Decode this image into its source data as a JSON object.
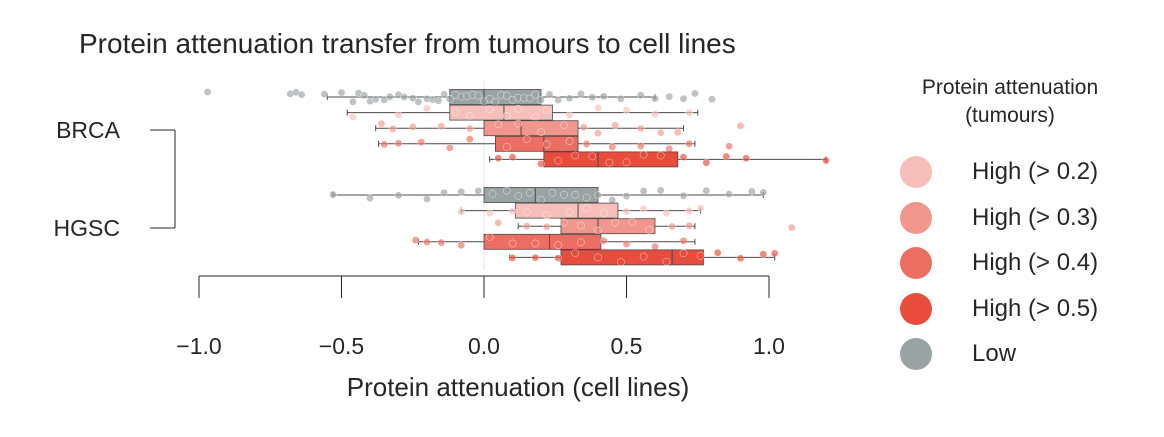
{
  "chart_data": {
    "type": "boxplot-strip",
    "title": "Protein attenuation transfer from tumours to cell lines",
    "xlabel": "Protein attenuation (cell lines)",
    "xlim": [
      -1.0,
      1.2
    ],
    "xticks": [
      -1.0,
      -0.5,
      0.0,
      0.5,
      1.0
    ],
    "xtick_labels": [
      "−1.0",
      "−0.5",
      "0.0",
      "0.5",
      "1.0"
    ],
    "groups": [
      "BRCA",
      "HGSC"
    ],
    "legend": {
      "title": "Protein attenuation\n(tumours)",
      "placement": "right",
      "entries": [
        {
          "label": "High (> 0.2)",
          "color": "#f6bfba"
        },
        {
          "label": "High (> 0.3)",
          "color": "#f1968d"
        },
        {
          "label": "High (> 0.4)",
          "color": "#ec6e62"
        },
        {
          "label": "High (> 0.5)",
          "color": "#e74c3c"
        },
        {
          "label": "Low",
          "color": "#99a3a4"
        }
      ]
    },
    "series": [
      {
        "group": "BRCA",
        "category": "Low",
        "box": {
          "whisker_low": -0.55,
          "q1": -0.12,
          "median": 0.0,
          "q3": 0.2,
          "whisker_high": 0.6
        },
        "points": [
          -0.97,
          -0.68,
          -0.66,
          -0.64,
          -0.56,
          -0.5,
          -0.46,
          -0.44,
          -0.42,
          -0.4,
          -0.38,
          -0.35,
          -0.33,
          -0.3,
          -0.28,
          -0.25,
          -0.23,
          -0.2,
          -0.18,
          -0.16,
          -0.14,
          -0.12,
          -0.1,
          -0.08,
          -0.06,
          -0.04,
          -0.02,
          0.0,
          0.02,
          0.04,
          0.06,
          0.08,
          0.1,
          0.12,
          0.14,
          0.16,
          0.18,
          0.2,
          0.23,
          0.26,
          0.3,
          0.34,
          0.38,
          0.42,
          0.48,
          0.55,
          0.6,
          0.65,
          0.7,
          0.74,
          0.8
        ]
      },
      {
        "group": "BRCA",
        "category": "High (> 0.2)",
        "box": {
          "whisker_low": -0.48,
          "q1": -0.12,
          "median": 0.07,
          "q3": 0.24,
          "whisker_high": 0.75
        },
        "points": [
          -0.46,
          -0.3,
          -0.2,
          -0.1,
          -0.05,
          0.02,
          0.08,
          0.12,
          0.18,
          0.22,
          0.3,
          0.4,
          0.5,
          0.6,
          0.72
        ]
      },
      {
        "group": "BRCA",
        "category": "High (> 0.3)",
        "box": {
          "whisker_low": -0.38,
          "q1": 0.0,
          "median": 0.13,
          "q3": 0.33,
          "whisker_high": 0.7
        },
        "points": [
          -0.36,
          -0.32,
          -0.25,
          -0.15,
          -0.05,
          0.05,
          0.12,
          0.2,
          0.28,
          0.35,
          0.4,
          0.46,
          0.55,
          0.62,
          0.68,
          0.9
        ]
      },
      {
        "group": "BRCA",
        "category": "High (> 0.4)",
        "box": {
          "whisker_low": -0.37,
          "q1": 0.04,
          "median": 0.21,
          "q3": 0.33,
          "whisker_high": 0.74
        },
        "points": [
          -0.35,
          -0.3,
          -0.22,
          -0.12,
          -0.05,
          0.08,
          0.15,
          0.22,
          0.3,
          0.36,
          0.45,
          0.55,
          0.65,
          0.72,
          0.86
        ]
      },
      {
        "group": "BRCA",
        "category": "High (> 0.5)",
        "box": {
          "whisker_low": 0.02,
          "q1": 0.21,
          "median": 0.4,
          "q3": 0.68,
          "whisker_high": 1.2
        },
        "points": [
          0.05,
          0.1,
          0.2,
          0.26,
          0.32,
          0.38,
          0.44,
          0.5,
          0.56,
          0.62,
          0.7,
          0.78,
          0.85,
          0.92,
          1.2
        ]
      },
      {
        "group": "HGSC",
        "category": "Low",
        "box": {
          "whisker_low": -0.53,
          "q1": 0.0,
          "median": 0.18,
          "q3": 0.4,
          "whisker_high": 0.98
        },
        "points": [
          -0.53,
          -0.4,
          -0.3,
          -0.2,
          -0.14,
          -0.08,
          -0.02,
          0.03,
          0.08,
          0.12,
          0.16,
          0.2,
          0.24,
          0.28,
          0.32,
          0.36,
          0.4,
          0.45,
          0.5,
          0.56,
          0.62,
          0.7,
          0.78,
          0.86,
          0.94,
          0.98
        ]
      },
      {
        "group": "HGSC",
        "category": "High (> 0.2)",
        "box": {
          "whisker_low": -0.08,
          "q1": 0.11,
          "median": 0.33,
          "q3": 0.47,
          "whisker_high": 0.76
        },
        "points": [
          -0.08,
          0.02,
          0.1,
          0.15,
          0.22,
          0.3,
          0.36,
          0.42,
          0.5,
          0.56,
          0.64,
          0.72,
          0.76
        ]
      },
      {
        "group": "HGSC",
        "category": "High (> 0.3)",
        "box": {
          "whisker_low": 0.12,
          "q1": 0.27,
          "median": 0.4,
          "q3": 0.6,
          "whisker_high": 0.74
        },
        "points": [
          0.05,
          0.15,
          0.22,
          0.28,
          0.34,
          0.4,
          0.46,
          0.52,
          0.58,
          0.66,
          0.72,
          1.08
        ]
      },
      {
        "group": "HGSC",
        "category": "High (> 0.4)",
        "box": {
          "whisker_low": -0.23,
          "q1": 0.0,
          "median": 0.23,
          "q3": 0.41,
          "whisker_high": 0.74
        },
        "points": [
          -0.24,
          -0.2,
          -0.15,
          -0.08,
          0.02,
          0.1,
          0.18,
          0.26,
          0.34,
          0.42,
          0.5,
          0.6,
          0.7
        ]
      },
      {
        "group": "HGSC",
        "category": "High (> 0.5)",
        "box": {
          "whisker_low": 0.09,
          "q1": 0.27,
          "median": 0.66,
          "q3": 0.77,
          "whisker_high": 1.02
        },
        "points": [
          0.1,
          0.18,
          0.26,
          0.32,
          0.4,
          0.48,
          0.56,
          0.64,
          0.7,
          0.76,
          0.82,
          0.9,
          0.98,
          1.02
        ]
      }
    ]
  }
}
